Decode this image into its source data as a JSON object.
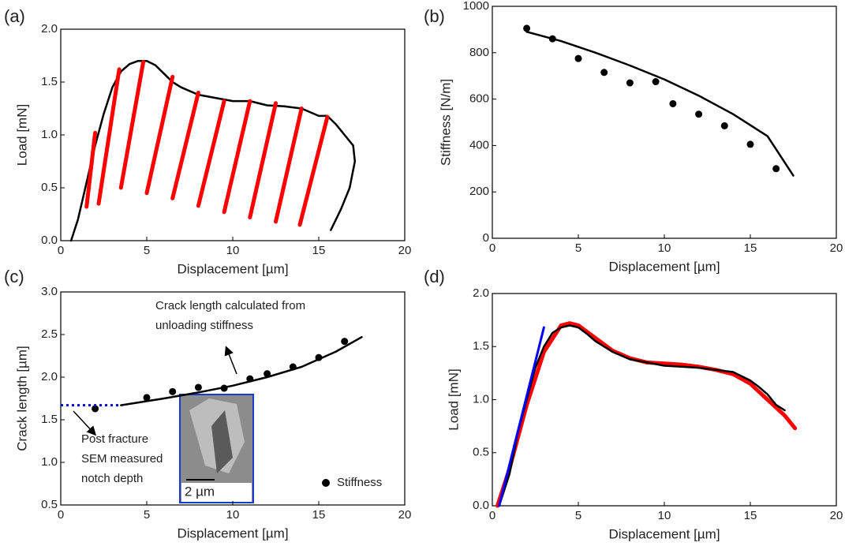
{
  "chart_data": [
    {
      "type": "line",
      "label": "(a)",
      "xlabel": "Displacement [µm]",
      "ylabel": "Load [mN]",
      "xlim": [
        0,
        20
      ],
      "xticks": [
        0,
        5,
        10,
        15,
        20
      ],
      "ylim": [
        0,
        2
      ],
      "yticks": [
        {
          "value": 0,
          "label": "0.0"
        },
        0.5,
        {
          "value": 1,
          "label": "1.0"
        },
        1.5,
        {
          "value": 2,
          "label": "2.0"
        }
      ],
      "series": [
        {
          "type": "line",
          "color": "#000000",
          "x": [
            0.6,
            1,
            1.5,
            2,
            2.5,
            3,
            3.5,
            4,
            4.5,
            5,
            5.5,
            6,
            6.5,
            7,
            8,
            9,
            10,
            11,
            12,
            13,
            14,
            15,
            15.5,
            16,
            16.5,
            17,
            17.1,
            16.8,
            16.3,
            15.7
          ],
          "values": [
            0,
            0.2,
            0.55,
            0.9,
            1.2,
            1.45,
            1.6,
            1.67,
            1.7,
            1.7,
            1.66,
            1.58,
            1.5,
            1.45,
            1.38,
            1.35,
            1.32,
            1.32,
            1.28,
            1.27,
            1.25,
            1.18,
            1.18,
            1.1,
            1.0,
            0.9,
            0.75,
            0.5,
            0.3,
            0.1
          ]
        },
        {
          "type": "line",
          "color": "#ff0000",
          "x": [
            2,
            1.5,
            null,
            3.4,
            2.2,
            null,
            4.8,
            3.5,
            null,
            6.5,
            5,
            null,
            8,
            6.5,
            null,
            9.5,
            8,
            null,
            11,
            9.5,
            null,
            12.5,
            11,
            null,
            14,
            12.5,
            null,
            15.5,
            13.9
          ],
          "values": [
            1.02,
            0.32,
            null,
            1.62,
            0.35,
            null,
            1.69,
            0.5,
            null,
            1.55,
            0.45,
            null,
            1.4,
            0.4,
            null,
            1.32,
            0.33,
            null,
            1.32,
            0.27,
            null,
            1.3,
            0.22,
            null,
            1.25,
            0.18,
            null,
            1.17,
            0.15
          ]
        }
      ]
    },
    {
      "type": "scatter",
      "label": "(b)",
      "xlabel": "Displacement [µm]",
      "ylabel": "Stiffness [N/m]",
      "xlim": [
        0,
        20
      ],
      "xticks": [
        0,
        5,
        10,
        15,
        20
      ],
      "ylim": [
        0,
        1000
      ],
      "yticks": [
        0,
        200,
        400,
        600,
        800,
        1000
      ],
      "series": [
        {
          "type": "scatter",
          "color": "#000000",
          "x": [
            2,
            3.5,
            5,
            6.5,
            8,
            9.5,
            10.5,
            12,
            13.5,
            15,
            16.5
          ],
          "values": [
            905,
            860,
            775,
            715,
            670,
            675,
            580,
            535,
            485,
            405,
            300
          ]
        },
        {
          "type": "line",
          "color": "#000000",
          "x": [
            2,
            4,
            6,
            8,
            10,
            12,
            14,
            16,
            17.5
          ],
          "values": [
            890,
            850,
            800,
            745,
            685,
            615,
            535,
            440,
            270
          ]
        }
      ]
    },
    {
      "type": "scatter",
      "label": "(c)",
      "xlabel": "Displacement [µm]",
      "ylabel": "Crack length [µm]",
      "xlim": [
        0,
        20
      ],
      "xticks": [
        0,
        5,
        10,
        15,
        20
      ],
      "ylim": [
        0.5,
        3
      ],
      "yticks": [
        0.5,
        {
          "value": 1,
          "label": "1.0"
        },
        1.5,
        {
          "value": 2,
          "label": "2.0"
        },
        2.5,
        {
          "value": 3,
          "label": "3.0"
        }
      ],
      "legend": "lower right",
      "series": [
        {
          "type": "scatter",
          "name": "Stiffness",
          "color": "#000000",
          "x": [
            2,
            5,
            6.5,
            8,
            9.5,
            11,
            12,
            13.5,
            15,
            16.5
          ],
          "values": [
            1.63,
            1.76,
            1.83,
            1.88,
            1.87,
            1.98,
            2.04,
            2.12,
            2.23,
            2.42
          ]
        },
        {
          "type": "line",
          "color": "#000000",
          "x": [
            3.5,
            6,
            8,
            10,
            12,
            14,
            16,
            17.5
          ],
          "values": [
            1.67,
            1.75,
            1.82,
            1.9,
            2.0,
            2.12,
            2.3,
            2.47
          ]
        },
        {
          "type": "line",
          "color": "#0000cc",
          "linestyle": "dotted",
          "x": [
            0,
            3.5
          ],
          "values": [
            1.67,
            1.67
          ]
        }
      ],
      "annotations": [
        [
          "Crack length calculated from",
          "unloading stiffness"
        ],
        [
          "Post fracture",
          "SEM measured",
          "notch depth"
        ]
      ],
      "inset_scale": "2 µm"
    },
    {
      "type": "line",
      "label": "(d)",
      "xlabel": "Displacement [µm]",
      "ylabel": "Load [mN]",
      "xlim": [
        0,
        20
      ],
      "xticks": [
        0,
        5,
        10,
        15,
        20
      ],
      "ylim": [
        0,
        2
      ],
      "yticks": [
        {
          "value": 0,
          "label": "0.0"
        },
        0.5,
        {
          "value": 1,
          "label": "1.0"
        },
        1.5,
        {
          "value": 2,
          "label": "2.0"
        }
      ],
      "series": [
        {
          "type": "line",
          "color": "#ff0000",
          "width": 5,
          "x": [
            0.3,
            1,
            2,
            3,
            4,
            4.5,
            5,
            6,
            7,
            8,
            9,
            10,
            11,
            12,
            13,
            14,
            15,
            16,
            17,
            17.6
          ],
          "values": [
            0,
            0.35,
            0.95,
            1.45,
            1.7,
            1.72,
            1.7,
            1.58,
            1.46,
            1.39,
            1.35,
            1.34,
            1.33,
            1.31,
            1.28,
            1.24,
            1.15,
            1.0,
            0.85,
            0.73
          ]
        },
        {
          "type": "line",
          "color": "#000000",
          "width": 2.5,
          "x": [
            0.4,
            1,
            1.5,
            2,
            2.5,
            3,
            3.5,
            4,
            4.5,
            5,
            5.5,
            6,
            7,
            8,
            9,
            10,
            11,
            12,
            13,
            14,
            14.5,
            15,
            15.5,
            16,
            16.5,
            17
          ],
          "values": [
            0,
            0.3,
            0.7,
            1.0,
            1.3,
            1.5,
            1.63,
            1.68,
            1.7,
            1.68,
            1.62,
            1.55,
            1.45,
            1.38,
            1.35,
            1.32,
            1.31,
            1.3,
            1.28,
            1.26,
            1.22,
            1.18,
            1.12,
            1.05,
            0.95,
            0.9
          ]
        },
        {
          "type": "line",
          "color": "#0000ff",
          "width": 3,
          "x": [
            0.4,
            3
          ],
          "values": [
            0,
            1.68
          ]
        }
      ]
    }
  ]
}
